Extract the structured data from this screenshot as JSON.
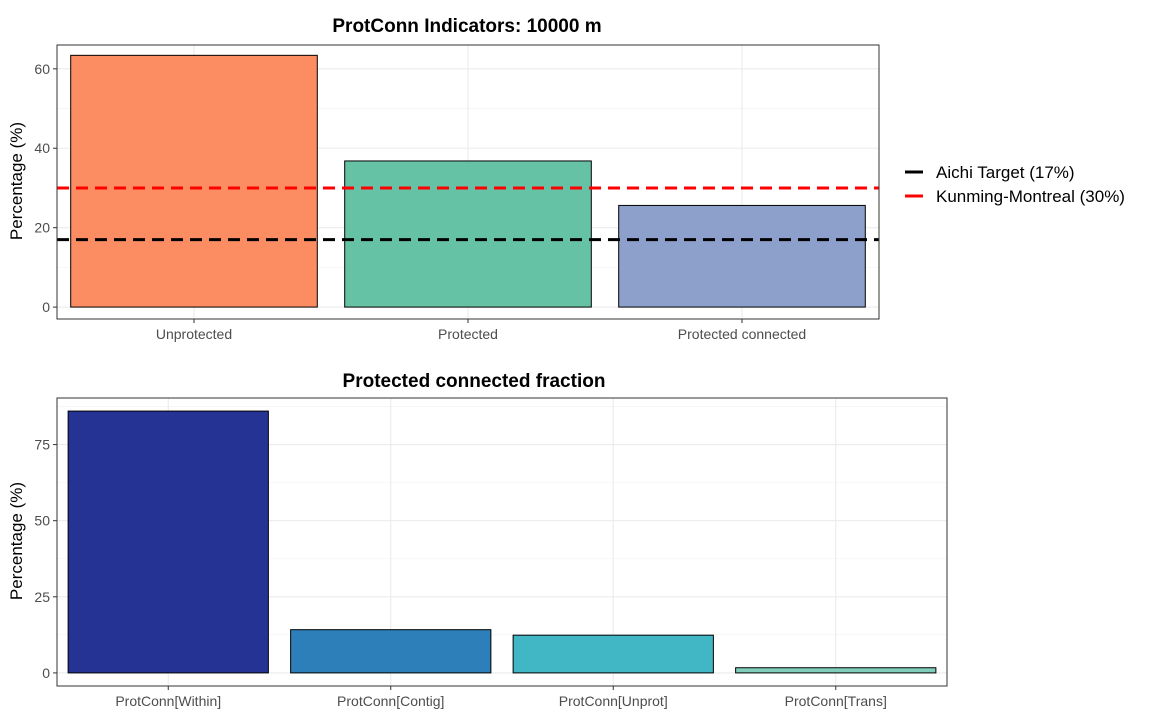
{
  "chart_data": [
    {
      "type": "bar",
      "title": "ProtConn Indicators: 10000 m",
      "xlabel": "",
      "ylabel": "Percentage (%)",
      "ylim": [
        -3,
        66
      ],
      "yticks": [
        0,
        20,
        40,
        60
      ],
      "grid": true,
      "categories": [
        "Unprotected",
        "Protected",
        "Protected connected"
      ],
      "values": [
        63.4,
        36.8,
        25.6
      ],
      "colors": [
        "#fc8d62",
        "#66c2a5",
        "#8da0cb"
      ],
      "reference_lines": [
        {
          "label": "Aichi Target (17%)",
          "value": 17,
          "color": "#000000",
          "style": "dashed"
        },
        {
          "label": "Kunming-Montreal (30%)",
          "value": 30,
          "color": "#ff0000",
          "style": "dashed"
        }
      ],
      "legend_position": "right"
    },
    {
      "type": "bar",
      "title": "Protected connected fraction",
      "xlabel": "",
      "ylabel": "Percentage (%)",
      "ylim": [
        -4.3,
        90.3
      ],
      "yticks": [
        0,
        25,
        50,
        75
      ],
      "grid": true,
      "categories": [
        "ProtConn[Within]",
        "ProtConn[Contig]",
        "ProtConn[Unprot]",
        "ProtConn[Trans]"
      ],
      "values": [
        86.0,
        14.2,
        12.4,
        1.7
      ],
      "colors": [
        "#253494",
        "#2c7fb8",
        "#41b6c4",
        "#7fcdbb"
      ]
    }
  ]
}
